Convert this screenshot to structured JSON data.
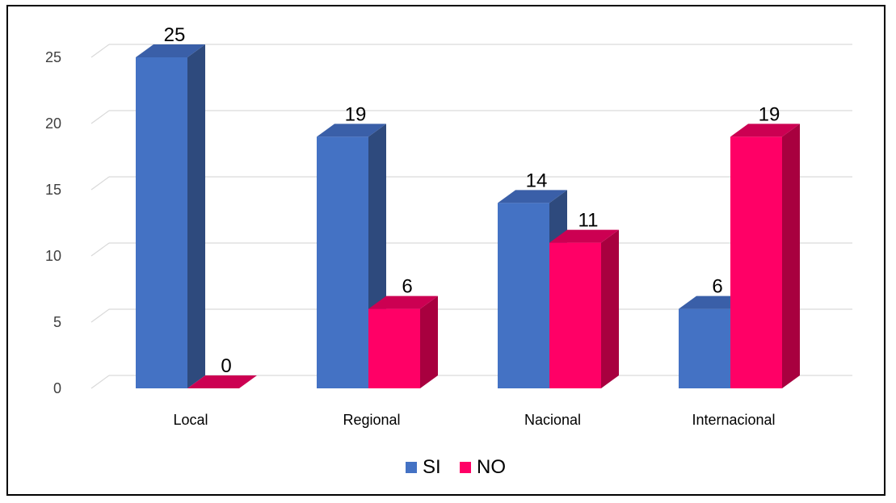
{
  "chart_data": {
    "type": "bar",
    "categories": [
      "Local",
      "Regional",
      "Nacional",
      "Internacional"
    ],
    "series": [
      {
        "name": "SI",
        "values": [
          25,
          19,
          14,
          6
        ],
        "color": "#4472C4",
        "side_color": "#2E4A7D",
        "top_color": "#3A5FA8"
      },
      {
        "name": "NO",
        "values": [
          0,
          6,
          11,
          19
        ],
        "color": "#FF0066",
        "side_color": "#A8003F",
        "top_color": "#CC0052"
      }
    ],
    "yticks": [
      0,
      5,
      10,
      15,
      20,
      25
    ],
    "ylim": [
      0,
      25
    ],
    "grid": true,
    "legend_position": "bottom",
    "data_labels": true
  }
}
